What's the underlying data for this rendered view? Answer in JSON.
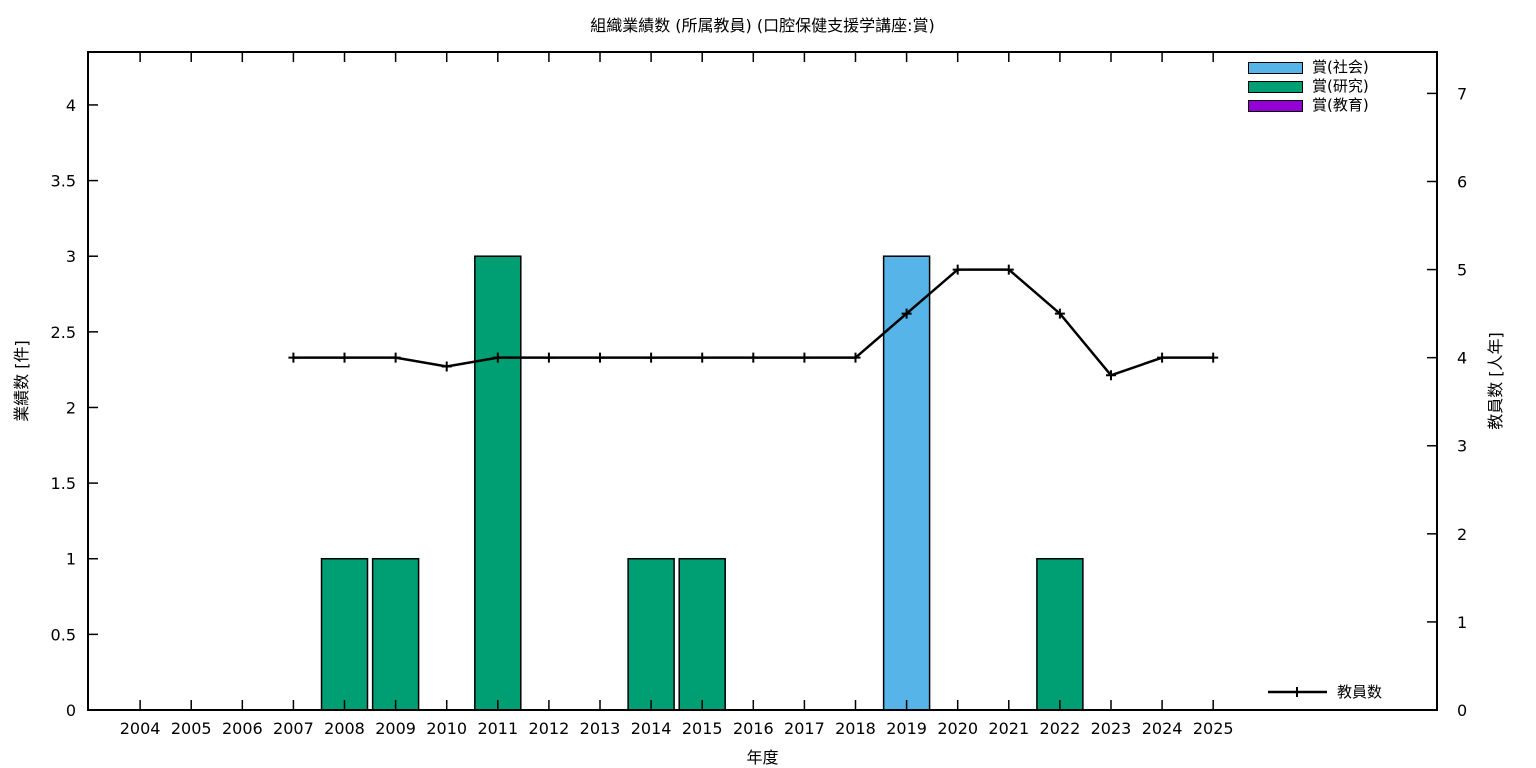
{
  "page": {
    "background": "#ffffff"
  },
  "chart_data": {
    "type": "bar",
    "title": "組織業績数 (所属教員) (口腔保健支援学講座:賞)",
    "xlabel": "年度",
    "ylabel_left": "業績数 [件]",
    "ylabel_right": "教員数 [人年]",
    "xlim": [
      2002.98,
      2029.38
    ],
    "ylim_left": [
      0,
      4.35
    ],
    "ylim_right": [
      0,
      7.47
    ],
    "x_ticks": [
      2004,
      2005,
      2006,
      2007,
      2008,
      2009,
      2010,
      2011,
      2012,
      2013,
      2014,
      2015,
      2016,
      2017,
      2018,
      2019,
      2020,
      2021,
      2022,
      2023,
      2024,
      2025
    ],
    "yticks_left": [
      "0",
      "0.5",
      "1",
      "1.5",
      "2",
      "2.5",
      "3",
      "3.5",
      "4"
    ],
    "yticks_left_values": [
      0,
      0.5,
      1,
      1.5,
      2,
      2.5,
      3,
      3.5,
      4
    ],
    "yticks_right": [
      "0",
      "1",
      "2",
      "3",
      "4",
      "5",
      "6",
      "7"
    ],
    "yticks_right_values": [
      0,
      1,
      2,
      3,
      4,
      5,
      6,
      7
    ],
    "grid": false,
    "bar_width_years": 0.9,
    "bar_series": [
      {
        "name": "賞(社会)",
        "color": "#56B4E9",
        "years": [
          2019
        ],
        "values": [
          3
        ]
      },
      {
        "name": "賞(研究)",
        "color": "#009E73",
        "years": [
          2008,
          2009,
          2011,
          2014,
          2015,
          2022
        ],
        "values": [
          1,
          1,
          3,
          1,
          1,
          1
        ]
      },
      {
        "name": "賞(教育)",
        "color": "#9400D3",
        "years": [],
        "values": []
      }
    ],
    "line_series": {
      "name": "教員数",
      "color": "#000000",
      "marker": "plus",
      "axis": "right",
      "x": [
        2007,
        2008,
        2009,
        2010,
        2011,
        2012,
        2013,
        2014,
        2015,
        2016,
        2017,
        2018,
        2019,
        2020,
        2021,
        2022,
        2023,
        2024,
        2025
      ],
      "values": [
        4.0,
        4.0,
        4.0,
        3.9,
        4.0,
        4.0,
        4.0,
        4.0,
        4.0,
        4.0,
        4.0,
        4.0,
        4.5,
        5.0,
        5.0,
        4.5,
        3.8,
        4.0,
        4.0
      ]
    },
    "legend_top_right": [
      "賞(社会)",
      "賞(研究)",
      "賞(教育)"
    ],
    "legend_bottom_right": "教員数"
  }
}
